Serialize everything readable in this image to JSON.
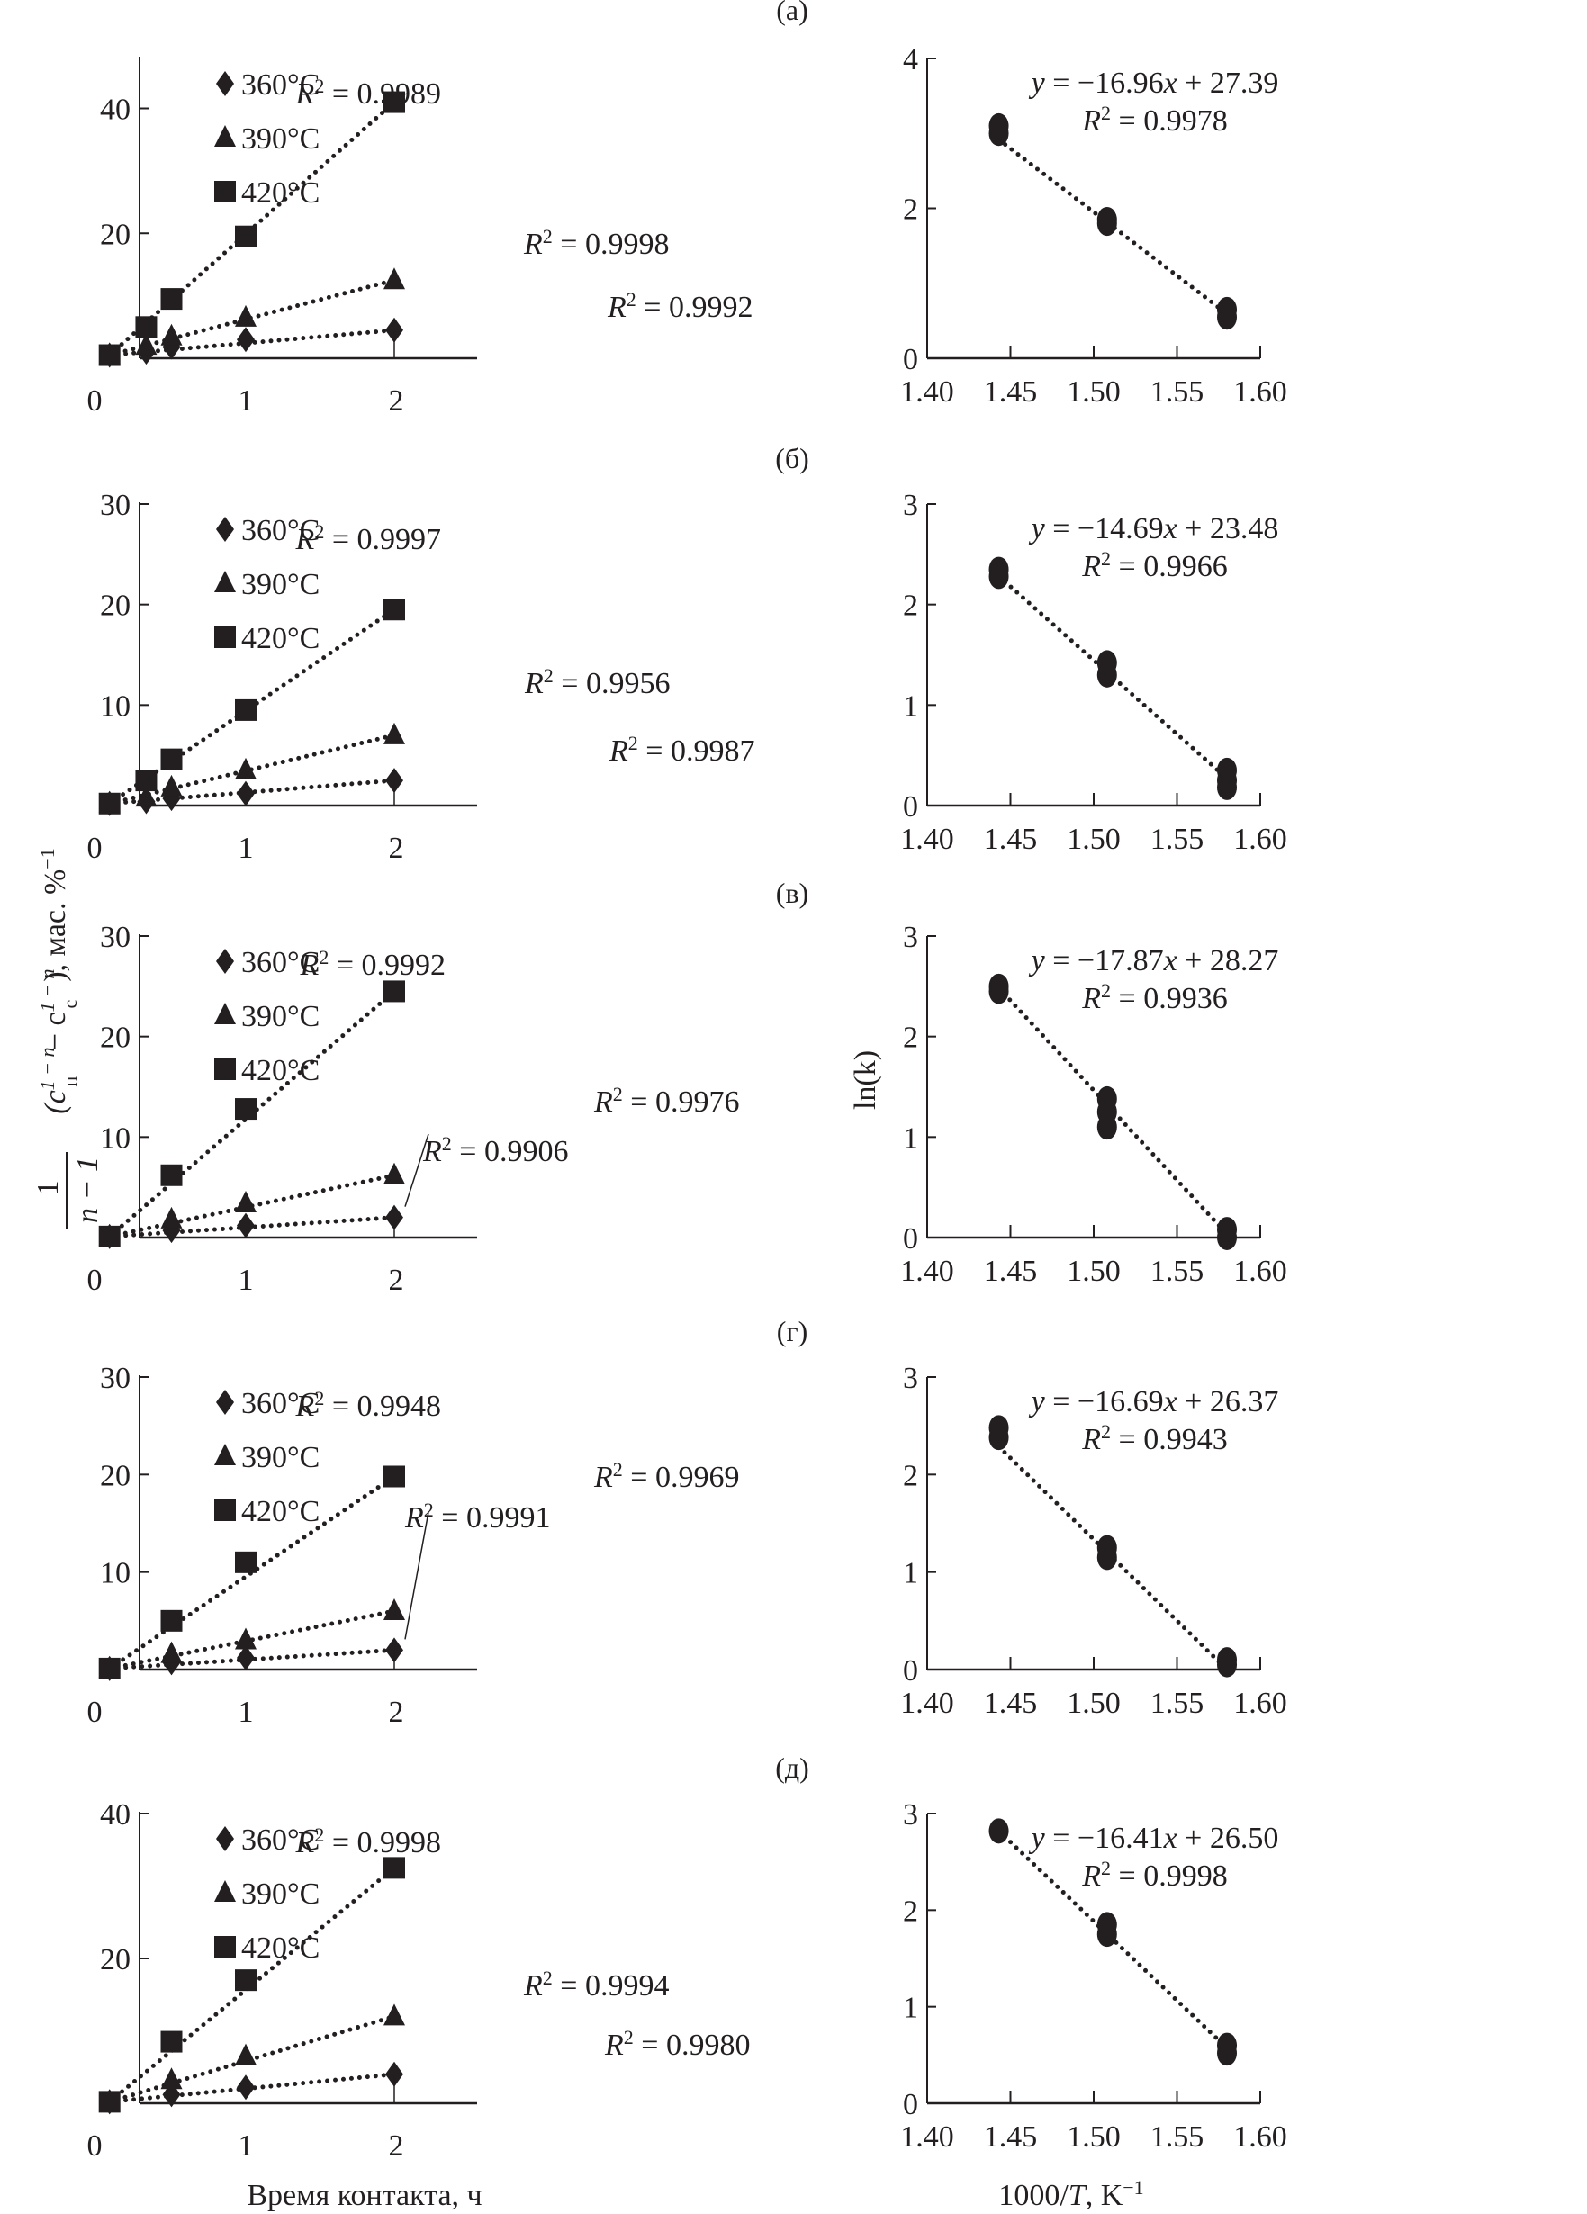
{
  "figure": {
    "left_ylabel": "1/(n − 1) (c_п^(1 − n) − c_с^(1 − n)), мас. %^−1",
    "left_ylabel_parts": {
      "frac_num": "1",
      "frac_den": "n − 1",
      "body": "(c",
      "sub1": "п",
      "sup1": "1 − n",
      "minus": " − c",
      "sub2": "c",
      "sup2": "1 − n",
      "tail": "), мас. %",
      "sup3": "−1"
    },
    "left_xlabel": "Время контакта, ч",
    "right_ylabel": "ln(k)",
    "right_xlabel": "1000/T, K",
    "right_xlabel_sup": "−1"
  },
  "chart_data": [
    {
      "panel": "(а)",
      "side": "left",
      "type": "scatter",
      "xlabel": "Время контакта, ч",
      "ylabel": "1/(n−1)(c_п^(1−n) − c_с^(1−n)), мас. %^−1",
      "xlim": [
        0,
        2.1
      ],
      "ylim": [
        0,
        48
      ],
      "xticks": [
        0,
        1,
        2
      ],
      "yticks": [
        20,
        40
      ],
      "grid": false,
      "legend": "top-left",
      "series": [
        {
          "name": "360°C",
          "marker": "diamond",
          "x": [
            0.083,
            0.33,
            0.5,
            1,
            2
          ],
          "y": [
            0.5,
            1.0,
            1.8,
            3.0,
            4.5
          ],
          "r2": "R2 = 0.9992"
        },
        {
          "name": "390°C",
          "marker": "triangle",
          "x": [
            0.083,
            0.33,
            0.5,
            1,
            2
          ],
          "y": [
            0.5,
            2.0,
            3.5,
            6.5,
            12.5
          ],
          "r2": "R2 = 0.9998"
        },
        {
          "name": "420°C",
          "marker": "square",
          "x": [
            0.083,
            0.33,
            0.5,
            1,
            2
          ],
          "y": [
            0.5,
            5.0,
            9.5,
            19.5,
            41.0
          ],
          "r2": "R2 = 0.9989"
        }
      ]
    },
    {
      "panel": "(а)",
      "side": "right",
      "type": "scatter",
      "xlabel": "1000/T, K^−1",
      "ylabel": "ln(k)",
      "xlim": [
        1.4,
        1.6
      ],
      "ylim": [
        0,
        4
      ],
      "xticks": [
        "1.40",
        "1.45",
        "1.50",
        "1.55",
        "1.60"
      ],
      "yticks": [
        0,
        2,
        4
      ],
      "grid": false,
      "equation": "y = −16.96x + 27.39",
      "r2": "R2 = 0.9978",
      "fit": {
        "slope": -16.96,
        "intercept": 27.39
      },
      "points": {
        "x": [
          1.443,
          1.443,
          1.508,
          1.508,
          1.58,
          1.58
        ],
        "y": [
          3.0,
          3.1,
          1.8,
          1.85,
          0.55,
          0.65
        ]
      }
    },
    {
      "panel": "(б)",
      "side": "left",
      "type": "scatter",
      "xlim": [
        0,
        2.1
      ],
      "ylim": [
        0,
        30
      ],
      "xticks": [
        0,
        1,
        2
      ],
      "yticks": [
        10,
        20,
        30
      ],
      "grid": false,
      "legend": "top-left",
      "series": [
        {
          "name": "360°C",
          "marker": "diamond",
          "x": [
            0.083,
            0.33,
            0.5,
            1,
            2
          ],
          "y": [
            0.2,
            0.4,
            0.7,
            1.2,
            2.5
          ],
          "r2": "R2 = 0.9987"
        },
        {
          "name": "390°C",
          "marker": "triangle",
          "x": [
            0.083,
            0.33,
            0.5,
            1,
            2
          ],
          "y": [
            0.2,
            0.8,
            1.8,
            3.5,
            7.0
          ],
          "r2": "R2 = 0.9956"
        },
        {
          "name": "420°C",
          "marker": "square",
          "x": [
            0.083,
            0.33,
            0.5,
            1,
            2
          ],
          "y": [
            0.2,
            2.5,
            4.6,
            9.5,
            19.5
          ],
          "r2": "R2 = 0.9997"
        }
      ]
    },
    {
      "panel": "(б)",
      "side": "right",
      "type": "scatter",
      "xlim": [
        1.4,
        1.6
      ],
      "ylim": [
        0,
        3
      ],
      "xticks": [
        "1.40",
        "1.45",
        "1.50",
        "1.55",
        "1.60"
      ],
      "yticks": [
        0,
        1,
        2,
        3
      ],
      "grid": false,
      "equation": "y = −14.69x + 23.48",
      "r2": "R2 = 0.9966",
      "fit": {
        "slope": -14.69,
        "intercept": 23.48
      },
      "points": {
        "x": [
          1.443,
          1.443,
          1.508,
          1.508,
          1.58,
          1.58,
          1.58
        ],
        "y": [
          2.28,
          2.35,
          1.3,
          1.42,
          0.18,
          0.25,
          0.35
        ]
      }
    },
    {
      "panel": "(в)",
      "side": "left",
      "type": "scatter",
      "xlim": [
        0,
        2.1
      ],
      "ylim": [
        0,
        30
      ],
      "xticks": [
        0,
        1,
        2
      ],
      "yticks": [
        10,
        20,
        30
      ],
      "grid": false,
      "legend": "top-left",
      "series": [
        {
          "name": "360°C",
          "marker": "diamond",
          "x": [
            0.083,
            0.5,
            1,
            2
          ],
          "y": [
            0.1,
            0.7,
            1.2,
            2.0
          ],
          "r2": "R2 = 0.9976"
        },
        {
          "name": "390°C",
          "marker": "triangle",
          "x": [
            0.083,
            0.5,
            1,
            2
          ],
          "y": [
            0.1,
            1.8,
            3.4,
            6.2
          ],
          "r2": "R2 = 0.9906"
        },
        {
          "name": "420°C",
          "marker": "square",
          "x": [
            0.083,
            0.5,
            1,
            2
          ],
          "y": [
            0.1,
            6.2,
            12.8,
            24.5
          ],
          "r2": "R2 = 0.9992"
        }
      ]
    },
    {
      "panel": "(в)",
      "side": "right",
      "type": "scatter",
      "xlabel": "1000/T, K^−1",
      "ylabel": "ln(k)",
      "xlim": [
        1.4,
        1.6
      ],
      "ylim": [
        0,
        3
      ],
      "xticks": [
        "1.40",
        "1.45",
        "1.50",
        "1.55",
        "1.60"
      ],
      "yticks": [
        0,
        1,
        2,
        3
      ],
      "grid": false,
      "equation": "y = −17.87x + 28.27",
      "r2": "R2 = 0.9936",
      "fit": {
        "slope": -17.87,
        "intercept": 28.27
      },
      "points": {
        "x": [
          1.443,
          1.443,
          1.508,
          1.508,
          1.508,
          1.58,
          1.58
        ],
        "y": [
          2.45,
          2.5,
          1.1,
          1.25,
          1.38,
          0.0,
          0.08
        ]
      }
    },
    {
      "panel": "(г)",
      "side": "left",
      "type": "scatter",
      "xlim": [
        0,
        2.1
      ],
      "ylim": [
        0,
        30
      ],
      "xticks": [
        0,
        1,
        2
      ],
      "yticks": [
        10,
        20,
        30
      ],
      "grid": false,
      "legend": "top-left",
      "series": [
        {
          "name": "360°C",
          "marker": "diamond",
          "x": [
            0.083,
            0.5,
            1,
            2
          ],
          "y": [
            0.1,
            0.7,
            1.2,
            2.0
          ],
          "r2": "R2 = 0.9969"
        },
        {
          "name": "390°C",
          "marker": "triangle",
          "x": [
            0.083,
            0.5,
            1,
            2
          ],
          "y": [
            0.1,
            1.6,
            3.0,
            6.0
          ],
          "r2": "R2 = 0.9991"
        },
        {
          "name": "420°C",
          "marker": "square",
          "x": [
            0.083,
            0.5,
            1,
            2
          ],
          "y": [
            0.1,
            5.0,
            11.0,
            19.8
          ],
          "r2": "R2 = 0.9948"
        }
      ]
    },
    {
      "panel": "(г)",
      "side": "right",
      "type": "scatter",
      "xlim": [
        1.4,
        1.6
      ],
      "ylim": [
        0,
        3
      ],
      "xticks": [
        "1.40",
        "1.45",
        "1.50",
        "1.55",
        "1.60"
      ],
      "yticks": [
        0,
        1,
        2,
        3
      ],
      "grid": false,
      "equation": "y = −16.69x + 26.37",
      "r2": "R2 = 0.9943",
      "fit": {
        "slope": -16.69,
        "intercept": 26.37
      },
      "points": {
        "x": [
          1.443,
          1.443,
          1.508,
          1.508,
          1.58,
          1.58
        ],
        "y": [
          2.38,
          2.48,
          1.15,
          1.25,
          0.05,
          0.1
        ]
      }
    },
    {
      "panel": "(д)",
      "side": "left",
      "type": "scatter",
      "xlabel": "Время контакта, ч",
      "xlim": [
        0,
        2.1
      ],
      "ylim": [
        0,
        40
      ],
      "xticks": [
        0,
        1,
        2
      ],
      "yticks": [
        20,
        40
      ],
      "grid": false,
      "legend": "top-left",
      "series": [
        {
          "name": "360°C",
          "marker": "diamond",
          "x": [
            0.083,
            0.5,
            1,
            2
          ],
          "y": [
            0.2,
            1.2,
            2.2,
            4.0
          ],
          "r2": "R2 = 0.9980"
        },
        {
          "name": "390°C",
          "marker": "triangle",
          "x": [
            0.083,
            0.5,
            1,
            2
          ],
          "y": [
            0.2,
            3.2,
            6.5,
            12.0
          ],
          "r2": "R2 = 0.9994"
        },
        {
          "name": "420°C",
          "marker": "square",
          "x": [
            0.083,
            0.5,
            1,
            2
          ],
          "y": [
            0.2,
            8.5,
            17.0,
            32.5
          ],
          "r2": "R2 = 0.9998"
        }
      ]
    },
    {
      "panel": "(д)",
      "side": "right",
      "type": "scatter",
      "xlabel": "1000/T, K^−1",
      "xlim": [
        1.4,
        1.6
      ],
      "ylim": [
        0,
        3
      ],
      "xticks": [
        "1.40",
        "1.45",
        "1.50",
        "1.55",
        "1.60"
      ],
      "yticks": [
        0,
        1,
        2,
        3
      ],
      "grid": false,
      "equation": "y = −16.41x + 26.50",
      "r2": "R2 = 0.9998",
      "fit": {
        "slope": -16.41,
        "intercept": 26.5
      },
      "points": {
        "x": [
          1.443,
          1.508,
          1.508,
          1.58,
          1.58
        ],
        "y": [
          2.82,
          1.75,
          1.85,
          0.52,
          0.6
        ]
      }
    }
  ]
}
